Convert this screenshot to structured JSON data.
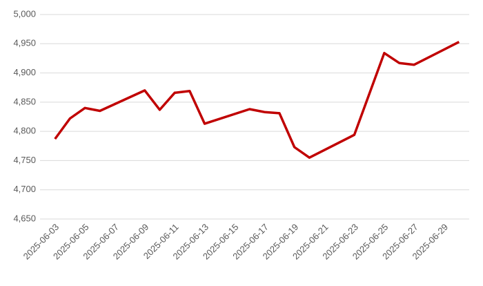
{
  "chart_data": {
    "type": "line",
    "x": [
      "2025-06-03",
      "2025-06-04",
      "2025-06-05",
      "2025-06-06",
      "2025-06-09",
      "2025-06-10",
      "2025-06-11",
      "2025-06-12",
      "2025-06-13",
      "2025-06-16",
      "2025-06-17",
      "2025-06-18",
      "2025-06-19",
      "2025-06-20",
      "2025-06-23",
      "2025-06-24",
      "2025-06-25",
      "2025-06-26",
      "2025-06-27",
      "2025-06-30"
    ],
    "series": [
      {
        "color": "#c00000",
        "values": [
          4787,
          4822,
          4840,
          4835,
          4870,
          4837,
          4866,
          4869,
          4813,
          4838,
          4833,
          4831,
          4773,
          4755,
          4794,
          4864,
          4934,
          4917,
          4914,
          4953
        ]
      }
    ],
    "xlim": [
      "2025-06-02",
      "2025-07-01"
    ],
    "xticks": [
      "2025-06-03",
      "2025-06-05",
      "2025-06-07",
      "2025-06-09",
      "2025-06-11",
      "2025-06-13",
      "2025-06-15",
      "2025-06-17",
      "2025-06-19",
      "2025-06-21",
      "2025-06-23",
      "2025-06-25",
      "2025-06-27",
      "2025-06-29"
    ],
    "ylim": [
      4650,
      5000
    ],
    "yticks": [
      {
        "value": 4650,
        "label": "4,650"
      },
      {
        "value": 4700,
        "label": "4,700"
      },
      {
        "value": 4750,
        "label": "4,750"
      },
      {
        "value": 4800,
        "label": "4,800"
      },
      {
        "value": 4850,
        "label": "4,850"
      },
      {
        "value": 4900,
        "label": "4,900"
      },
      {
        "value": 4950,
        "label": "4,950"
      },
      {
        "value": 5000,
        "label": "5,000"
      }
    ],
    "grid": true
  }
}
